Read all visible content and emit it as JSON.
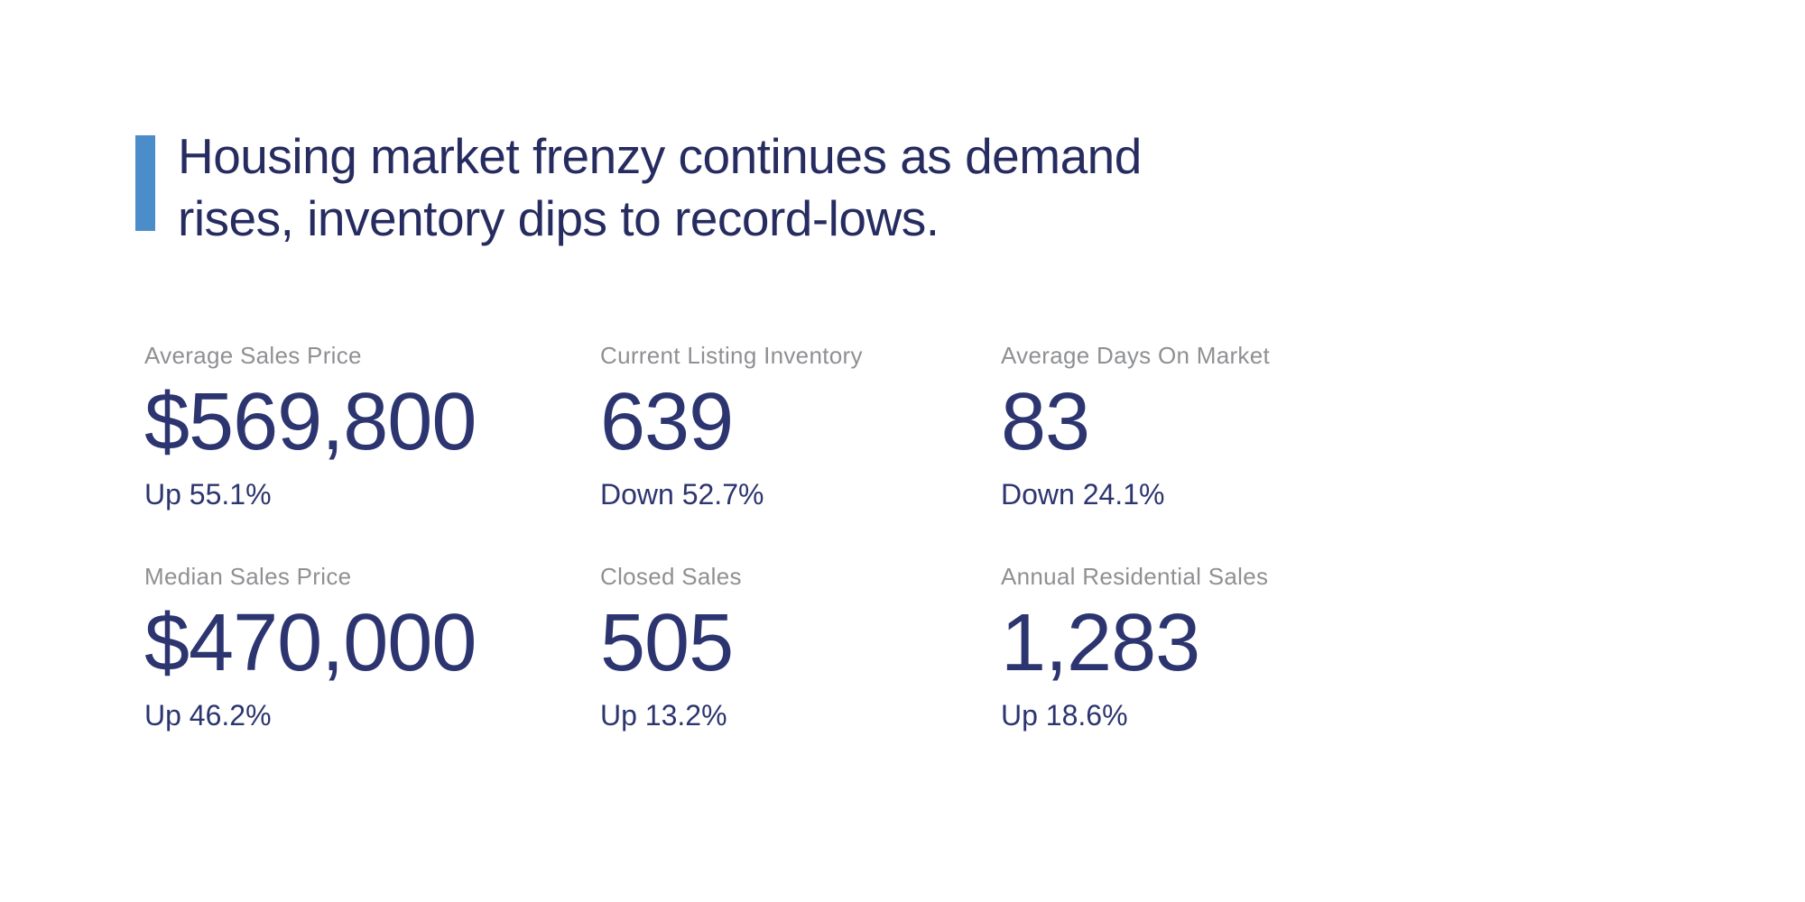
{
  "page": {
    "background_color": "#ffffff"
  },
  "headline": {
    "text": "Housing market frenzy continues as demand\nrises, inventory dips to record-lows.",
    "text_color": "#272c60",
    "accent_bar_color": "#4b8dc8"
  },
  "stats": {
    "label_color": "#8f9093",
    "value_color": "#2c356f",
    "items": [
      {
        "label": "Average Sales Price",
        "value": "$569,800",
        "change": "Up 55.1%",
        "direction": "up"
      },
      {
        "label": "Current Listing Inventory",
        "value": "639",
        "change": "Down 52.7%",
        "direction": "down"
      },
      {
        "label": "Average Days On Market",
        "value": "83",
        "change": "Down 24.1%",
        "direction": "down"
      },
      {
        "label": "Median Sales Price",
        "value": "$470,000",
        "change": "Up 46.2%",
        "direction": "up"
      },
      {
        "label": "Closed Sales",
        "value": "505",
        "change": "Up 13.2%",
        "direction": "up"
      },
      {
        "label": "Annual Residential Sales",
        "value": "1,283",
        "change": "Up 18.6%",
        "direction": "up"
      }
    ]
  }
}
